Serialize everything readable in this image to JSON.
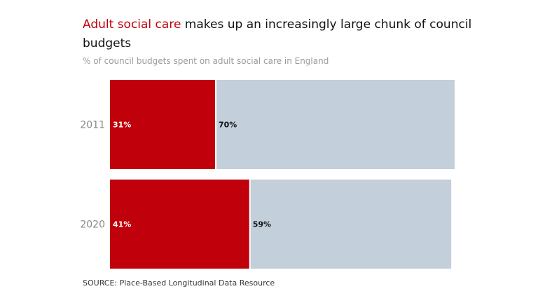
{
  "header": {
    "title_highlight": "Adult social care",
    "title_rest": " makes up an increasingly large chunk of council budgets",
    "subtitle": "% of council budgets spent on adult social care in England"
  },
  "footer": {
    "source": "SOURCE: Place-Based Longitudinal Data Resource"
  },
  "colors": {
    "accent": "#c0000a",
    "remainder": "#c3cfdb"
  },
  "chart_data": {
    "type": "bar",
    "orientation": "horizontal",
    "stacked": true,
    "categories": [
      "2011",
      "2020"
    ],
    "series": [
      {
        "values": [
          31,
          41
        ],
        "labels": [
          "31%",
          "41%"
        ]
      },
      {
        "values": [
          70,
          59
        ],
        "labels": [
          "70%",
          "59%"
        ]
      }
    ],
    "title": "Adult social care makes up an increasingly large chunk of council budgets",
    "subtitle": "% of council budgets spent on adult social care in England",
    "xlabel": "",
    "ylabel": "",
    "xlim": [
      0,
      101
    ],
    "grid": false
  }
}
